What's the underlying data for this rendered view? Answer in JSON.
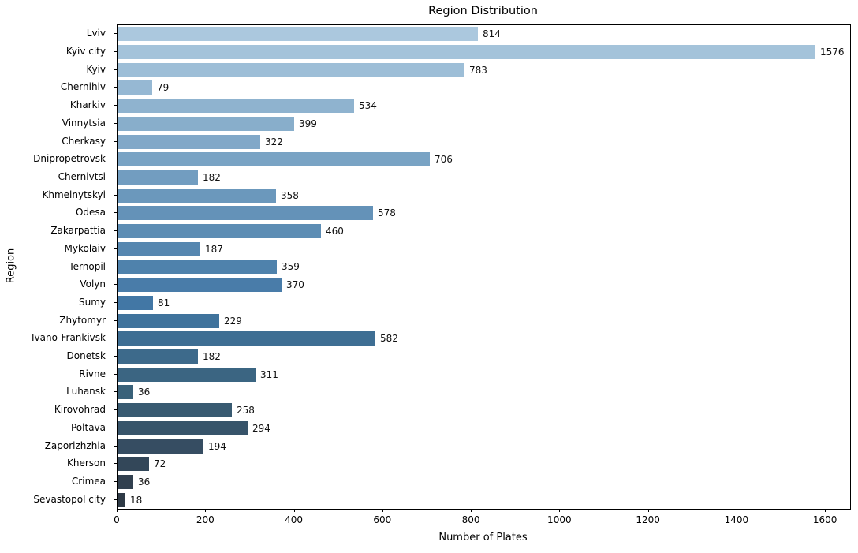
{
  "chart_data": {
    "type": "bar",
    "orientation": "horizontal",
    "title": "Region Distribution",
    "xlabel": "Number of Plates",
    "ylabel": "Region",
    "categories": [
      "Lviv",
      "Kyiv city",
      "Kyiv",
      "Chernihiv",
      "Kharkiv",
      "Vinnytsia",
      "Cherkasy",
      "Dnipropetrovsk",
      "Chernivtsi",
      "Khmelnytskyi",
      "Odesa",
      "Zakarpattia",
      "Mykolaiv",
      "Ternopil",
      "Volyn",
      "Sumy",
      "Zhytomyr",
      "Ivano-Frankivsk",
      "Donetsk",
      "Rivne",
      "Luhansk",
      "Kirovohrad",
      "Poltava",
      "Zaporizhzhia",
      "Kherson",
      "Crimea",
      "Sevastopol city"
    ],
    "values": [
      814,
      1576,
      783,
      79,
      534,
      399,
      322,
      706,
      182,
      358,
      578,
      460,
      187,
      359,
      370,
      81,
      229,
      582,
      182,
      311,
      36,
      258,
      294,
      194,
      72,
      36,
      18
    ],
    "bar_colors": [
      "#abc8de",
      "#a4c3da",
      "#9dbed7",
      "#96b8d3",
      "#8fb3cf",
      "#88aecb",
      "#81a8c8",
      "#79a3c4",
      "#729dc0",
      "#6b98bc",
      "#6492b8",
      "#5d8db4",
      "#5687b0",
      "#4f82ac",
      "#497ca9",
      "#4277a5",
      "#40739c",
      "#3e6e93",
      "#3d6a8b",
      "#3b6582",
      "#396179",
      "#385a71",
      "#37546a",
      "#364d62",
      "#334759",
      "#31404f",
      "#2e3a46"
    ],
    "xlim": [
      0,
      1655
    ],
    "xticks": [
      0,
      200,
      400,
      600,
      800,
      1000,
      1200,
      1400,
      1600
    ],
    "grid": false,
    "legend": null,
    "spine_color": "#000000",
    "value_label_color": "#111111",
    "background_color": "#ffffff"
  }
}
